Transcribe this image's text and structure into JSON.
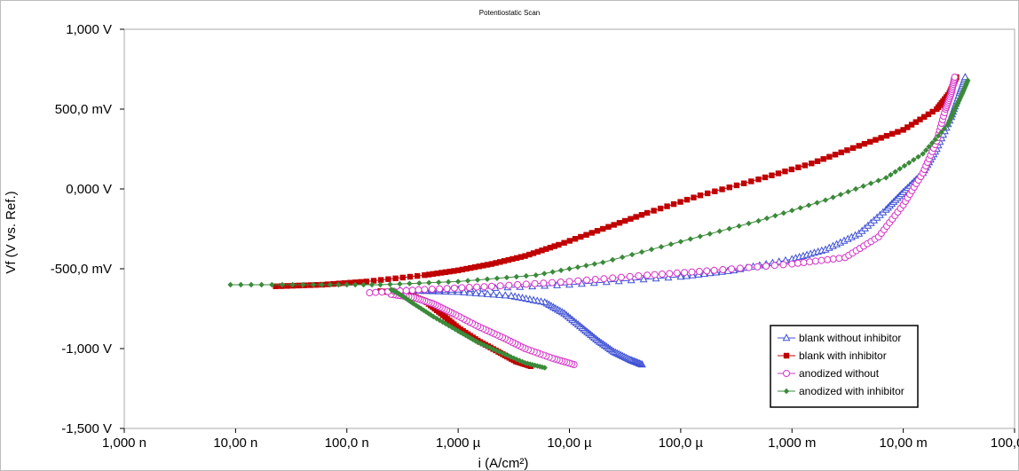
{
  "chart_data": {
    "type": "scatter",
    "title": "Potentiostatic Scan",
    "xlabel": "i (A/cm²)",
    "ylabel": "Vf (V vs. Ref.)",
    "x_scale": "log",
    "xlim": [
      1e-09,
      0.1
    ],
    "ylim": [
      -1.5,
      1.0
    ],
    "x_ticks": [
      1e-09,
      1e-08,
      1e-07,
      1e-06,
      1e-05,
      0.0001,
      0.001,
      0.01,
      0.1
    ],
    "x_tick_labels": [
      "1,000 n",
      "10,00 n",
      "100,0 n",
      "1,000 µ",
      "10,00 µ",
      "100,0 µ",
      "1,000 m",
      "10,00 m",
      "100,0 m"
    ],
    "y_ticks": [
      1.0,
      0.5,
      0.0,
      -0.5,
      -1.0,
      -1.5
    ],
    "y_tick_labels": [
      "1,000 V",
      "500,0 mV",
      "0,000 V",
      "-500,0 mV",
      "-1,000 V",
      "-1,500 V"
    ],
    "grid": false,
    "legend_position": "bottom-right",
    "series": [
      {
        "name": "blank without inhibitor",
        "color": "#3f51d6",
        "marker": "triangle-open",
        "cathodic": [
          [
            4.5e-05,
            -1.1
          ],
          [
            3.5e-05,
            -1.07
          ],
          [
            2.5e-05,
            -1.02
          ],
          [
            1.8e-05,
            -0.95
          ],
          [
            1.3e-05,
            -0.87
          ],
          [
            9e-06,
            -0.78
          ],
          [
            6e-06,
            -0.71
          ],
          [
            3e-06,
            -0.67
          ],
          [
            1e-06,
            -0.645
          ],
          [
            3e-07,
            -0.635
          ]
        ],
        "anodic": [
          [
            3e-07,
            -0.64
          ],
          [
            1e-06,
            -0.63
          ],
          [
            1e-05,
            -0.6
          ],
          [
            0.0001,
            -0.55
          ],
          [
            0.0003,
            -0.51
          ],
          [
            0.001,
            -0.44
          ],
          [
            0.002,
            -0.38
          ],
          [
            0.004,
            -0.28
          ],
          [
            0.007,
            -0.13
          ],
          [
            0.01,
            -0.02
          ],
          [
            0.015,
            0.1
          ],
          [
            0.02,
            0.25
          ],
          [
            0.027,
            0.45
          ],
          [
            0.032,
            0.6
          ],
          [
            0.036,
            0.7
          ]
        ]
      },
      {
        "name": "blank with inhibitor",
        "color": "#c00000",
        "marker": "square-filled",
        "cathodic": [
          [
            4.5e-06,
            -1.11
          ],
          [
            3.3e-06,
            -1.08
          ],
          [
            2.3e-06,
            -1.02
          ],
          [
            1.5e-06,
            -0.95
          ],
          [
            1e-06,
            -0.87
          ],
          [
            7e-07,
            -0.78
          ],
          [
            5e-07,
            -0.7
          ],
          [
            3.5e-07,
            -0.66
          ],
          [
            2e-07,
            -0.64
          ]
        ],
        "anodic": [
          [
            2.3e-08,
            -0.61
          ],
          [
            6e-08,
            -0.6
          ],
          [
            1.5e-07,
            -0.58
          ],
          [
            5e-07,
            -0.54
          ],
          [
            1e-06,
            -0.51
          ],
          [
            2e-06,
            -0.47
          ],
          [
            4e-06,
            -0.42
          ],
          [
            8e-06,
            -0.35
          ],
          [
            2e-05,
            -0.25
          ],
          [
            5e-05,
            -0.15
          ],
          [
            0.00015,
            -0.04
          ],
          [
            0.0005,
            0.06
          ],
          [
            0.0015,
            0.16
          ],
          [
            0.004,
            0.27
          ],
          [
            0.01,
            0.37
          ],
          [
            0.02,
            0.5
          ],
          [
            0.026,
            0.6
          ],
          [
            0.03,
            0.7
          ]
        ]
      },
      {
        "name": "anodized without",
        "color": "#d633c8",
        "marker": "circle-open",
        "cathodic": [
          [
            1.1e-05,
            -1.1
          ],
          [
            7e-06,
            -1.06
          ],
          [
            4e-06,
            -1.0
          ],
          [
            2.5e-06,
            -0.93
          ],
          [
            1.5e-06,
            -0.86
          ],
          [
            9e-07,
            -0.78
          ],
          [
            6e-07,
            -0.72
          ],
          [
            4e-07,
            -0.68
          ],
          [
            2.5e-07,
            -0.66
          ]
        ],
        "anodic": [
          [
            1.6e-07,
            -0.65
          ],
          [
            5e-07,
            -0.63
          ],
          [
            2e-06,
            -0.61
          ],
          [
            1e-05,
            -0.58
          ],
          [
            5e-05,
            -0.54
          ],
          [
            0.0002,
            -0.51
          ],
          [
            0.001,
            -0.47
          ],
          [
            0.003,
            -0.43
          ],
          [
            0.006,
            -0.3
          ],
          [
            0.01,
            -0.1
          ],
          [
            0.015,
            0.1
          ],
          [
            0.02,
            0.3
          ],
          [
            0.024,
            0.5
          ],
          [
            0.027,
            0.6
          ],
          [
            0.029,
            0.7
          ]
        ]
      },
      {
        "name": "anodized with inhibitor",
        "color": "#3a8a3a",
        "marker": "diamond-filled",
        "cathodic": [
          [
            6e-06,
            -1.12
          ],
          [
            4e-06,
            -1.09
          ],
          [
            2.5e-06,
            -1.03
          ],
          [
            1.5e-06,
            -0.96
          ],
          [
            1e-06,
            -0.89
          ],
          [
            6e-07,
            -0.8
          ],
          [
            4e-07,
            -0.72
          ],
          [
            3e-07,
            -0.66
          ],
          [
            2.5e-07,
            -0.63
          ]
        ],
        "anodic": [
          [
            9e-09,
            -0.6
          ],
          [
            5e-08,
            -0.6
          ],
          [
            2e-07,
            -0.6
          ],
          [
            1e-06,
            -0.58
          ],
          [
            5e-06,
            -0.54
          ],
          [
            2e-05,
            -0.46
          ],
          [
            0.0001,
            -0.33
          ],
          [
            0.0005,
            -0.2
          ],
          [
            0.002,
            -0.07
          ],
          [
            0.007,
            0.07
          ],
          [
            0.015,
            0.22
          ],
          [
            0.025,
            0.4
          ],
          [
            0.03,
            0.52
          ],
          [
            0.034,
            0.6
          ],
          [
            0.038,
            0.68
          ]
        ]
      }
    ]
  }
}
